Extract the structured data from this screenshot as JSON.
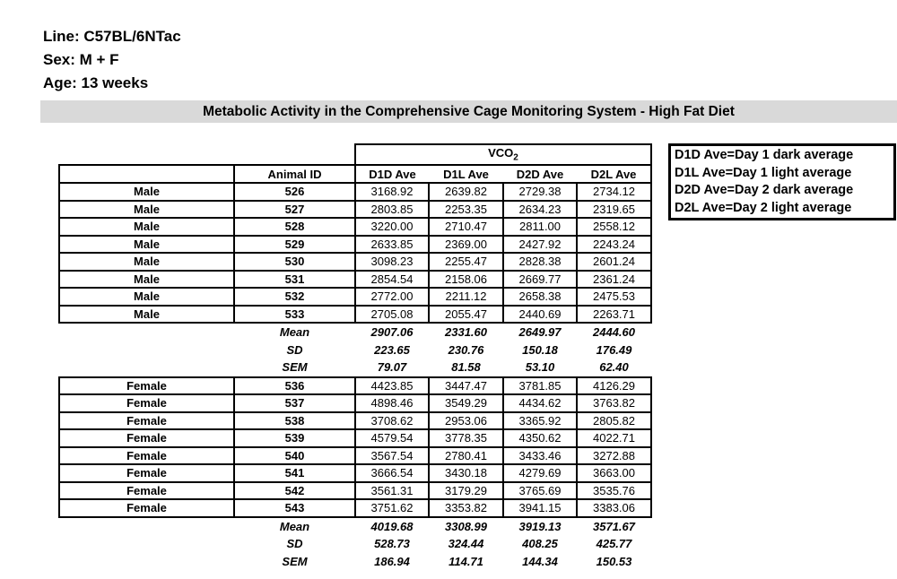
{
  "meta": {
    "line": "Line: C57BL/6NTac",
    "sex": "Sex: M + F",
    "age": "Age: 13 weeks"
  },
  "banner": {
    "title": "Metabolic Activity in the Comprehensive Cage Monitoring System - High Fat Diet",
    "bg_color": "#d9d9d9"
  },
  "table": {
    "group_header": {
      "label": "VCO",
      "subscript": "2"
    },
    "columns": [
      "Animal ID",
      "D1D Ave",
      "D1L Ave",
      "D2D Ave",
      "D2L Ave"
    ],
    "groups": [
      {
        "sex": "Male",
        "rows": [
          {
            "id": "526",
            "values": [
              "3168.92",
              "2639.82",
              "2729.38",
              "2734.12"
            ]
          },
          {
            "id": "527",
            "values": [
              "2803.85",
              "2253.35",
              "2634.23",
              "2319.65"
            ]
          },
          {
            "id": "528",
            "values": [
              "3220.00",
              "2710.47",
              "2811.00",
              "2558.12"
            ]
          },
          {
            "id": "529",
            "values": [
              "2633.85",
              "2369.00",
              "2427.92",
              "2243.24"
            ]
          },
          {
            "id": "530",
            "values": [
              "3098.23",
              "2255.47",
              "2828.38",
              "2601.24"
            ]
          },
          {
            "id": "531",
            "values": [
              "2854.54",
              "2158.06",
              "2669.77",
              "2361.24"
            ]
          },
          {
            "id": "532",
            "values": [
              "2772.00",
              "2211.12",
              "2658.38",
              "2475.53"
            ]
          },
          {
            "id": "533",
            "values": [
              "2705.08",
              "2055.47",
              "2440.69",
              "2263.71"
            ]
          }
        ],
        "stats": [
          {
            "label": "Mean",
            "values": [
              "2907.06",
              "2331.60",
              "2649.97",
              "2444.60"
            ]
          },
          {
            "label": "SD",
            "values": [
              "223.65",
              "230.76",
              "150.18",
              "176.49"
            ]
          },
          {
            "label": "SEM",
            "values": [
              "79.07",
              "81.58",
              "53.10",
              "62.40"
            ]
          }
        ]
      },
      {
        "sex": "Female",
        "rows": [
          {
            "id": "536",
            "values": [
              "4423.85",
              "3447.47",
              "3781.85",
              "4126.29"
            ]
          },
          {
            "id": "537",
            "values": [
              "4898.46",
              "3549.29",
              "4434.62",
              "3763.82"
            ]
          },
          {
            "id": "538",
            "values": [
              "3708.62",
              "2953.06",
              "3365.92",
              "2805.82"
            ]
          },
          {
            "id": "539",
            "values": [
              "4579.54",
              "3778.35",
              "4350.62",
              "4022.71"
            ]
          },
          {
            "id": "540",
            "values": [
              "3567.54",
              "2780.41",
              "3433.46",
              "3272.88"
            ]
          },
          {
            "id": "541",
            "values": [
              "3666.54",
              "3430.18",
              "4279.69",
              "3663.00"
            ]
          },
          {
            "id": "542",
            "values": [
              "3561.31",
              "3179.29",
              "3765.69",
              "3535.76"
            ]
          },
          {
            "id": "543",
            "values": [
              "3751.62",
              "3353.82",
              "3941.15",
              "3383.06"
            ]
          }
        ],
        "stats": [
          {
            "label": "Mean",
            "values": [
              "4019.68",
              "3308.99",
              "3919.13",
              "3571.67"
            ]
          },
          {
            "label": "SD",
            "values": [
              "528.73",
              "324.44",
              "408.25",
              "425.77"
            ]
          },
          {
            "label": "SEM",
            "values": [
              "186.94",
              "114.71",
              "144.34",
              "150.53"
            ]
          }
        ]
      }
    ]
  },
  "legend": {
    "lines": [
      "D1D Ave=Day 1 dark average",
      "D1L Ave=Day 1 light average",
      "D2D Ave=Day 2 dark average",
      "D2L Ave=Day 2 light average"
    ]
  }
}
